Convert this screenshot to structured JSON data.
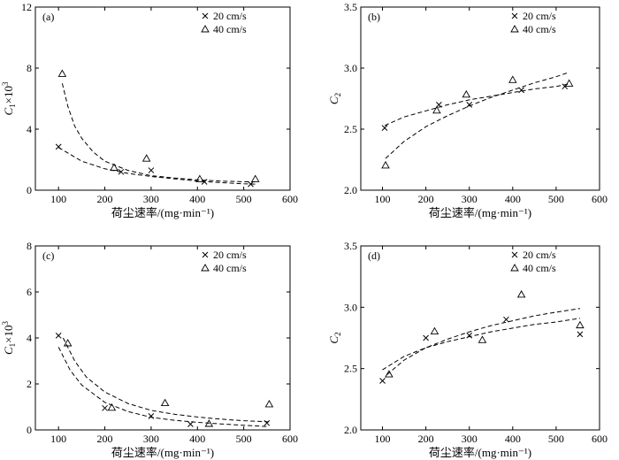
{
  "chart_data": [
    {
      "type": "scatter",
      "panel_label": "(a)",
      "xlabel": "荷尘速率/(mg·min⁻¹)",
      "ylabel_main": "C",
      "ylabel_sub": "1",
      "ylabel_suffix": "×10",
      "ylabel_sup": "3",
      "xlim": [
        50,
        600
      ],
      "ylim": [
        0,
        12
      ],
      "xticks": [
        100,
        200,
        300,
        400,
        500,
        600
      ],
      "yticks": [
        0,
        4,
        8,
        12
      ],
      "legend_position": "top-right",
      "series": [
        {
          "name": "20 cm/s",
          "marker": "x",
          "x": [
            100,
            235,
            300,
            415,
            515
          ],
          "y": [
            2.85,
            1.2,
            1.3,
            0.55,
            0.4
          ],
          "fit_x": [
            100,
            150,
            200,
            250,
            300,
            350,
            400,
            450,
            500,
            525
          ],
          "fit_y": [
            2.8,
            1.9,
            1.4,
            1.1,
            0.9,
            0.75,
            0.6,
            0.5,
            0.42,
            0.4
          ]
        },
        {
          "name": "40 cm/s",
          "marker": "triangle",
          "x": [
            108,
            220,
            290,
            405,
            525
          ],
          "y": [
            7.6,
            1.45,
            2.05,
            0.7,
            0.7
          ],
          "fit_x": [
            108,
            120,
            135,
            150,
            175,
            200,
            250,
            300,
            350,
            400,
            450,
            500,
            525
          ],
          "fit_y": [
            7.0,
            5.5,
            4.2,
            3.4,
            2.5,
            1.9,
            1.3,
            0.95,
            0.8,
            0.68,
            0.6,
            0.55,
            0.55
          ]
        }
      ]
    },
    {
      "type": "scatter",
      "panel_label": "(b)",
      "xlabel": "荷尘速率/(mg·min⁻¹)",
      "ylabel_main": "C",
      "ylabel_sub": "2",
      "ylabel_suffix": "",
      "ylabel_sup": "",
      "xlim": [
        50,
        600
      ],
      "ylim": [
        2.0,
        3.5
      ],
      "xticks": [
        100,
        200,
        300,
        400,
        500,
        600
      ],
      "yticks": [
        2.0,
        2.5,
        3.0,
        3.5
      ],
      "legend_position": "top-right",
      "series": [
        {
          "name": "20 cm/s",
          "marker": "x",
          "x": [
            105,
            230,
            300,
            420,
            520
          ],
          "y": [
            2.51,
            2.7,
            2.7,
            2.82,
            2.85
          ],
          "fit_x": [
            105,
            150,
            200,
            250,
            300,
            350,
            400,
            450,
            500,
            530
          ],
          "fit_y": [
            2.53,
            2.6,
            2.65,
            2.7,
            2.74,
            2.77,
            2.8,
            2.83,
            2.85,
            2.87
          ]
        },
        {
          "name": "40 cm/s",
          "marker": "triangle",
          "x": [
            107,
            225,
            293,
            400,
            530
          ],
          "y": [
            2.2,
            2.65,
            2.78,
            2.9,
            2.87
          ],
          "fit_x": [
            107,
            150,
            200,
            250,
            300,
            350,
            400,
            450,
            500,
            525
          ],
          "fit_y": [
            2.26,
            2.4,
            2.52,
            2.61,
            2.69,
            2.76,
            2.82,
            2.88,
            2.93,
            2.96
          ]
        }
      ]
    },
    {
      "type": "scatter",
      "panel_label": "(c)",
      "xlabel": "荷尘速率/(mg·min⁻¹)",
      "ylabel_main": "C",
      "ylabel_sub": "1",
      "ylabel_suffix": "×10",
      "ylabel_sup": "3",
      "xlim": [
        50,
        600
      ],
      "ylim": [
        0,
        8
      ],
      "xticks": [
        100,
        200,
        300,
        400,
        500,
        600
      ],
      "yticks": [
        0,
        2,
        4,
        6,
        8
      ],
      "legend_position": "top-right",
      "series": [
        {
          "name": "20 cm/s",
          "marker": "x",
          "x": [
            100,
            200,
            300,
            385,
            550
          ],
          "y": [
            4.1,
            0.95,
            0.6,
            0.25,
            0.3
          ],
          "fit_x": [
            100,
            125,
            150,
            200,
            250,
            300,
            350,
            400,
            450,
            500,
            550
          ],
          "fit_y": [
            3.6,
            2.6,
            1.95,
            1.2,
            0.8,
            0.55,
            0.42,
            0.33,
            0.26,
            0.2,
            0.15
          ]
        },
        {
          "name": "40 cm/s",
          "marker": "triangle",
          "x": [
            120,
            215,
            330,
            425,
            555
          ],
          "y": [
            3.75,
            0.95,
            1.15,
            0.25,
            1.1
          ],
          "fit_x": [
            110,
            135,
            160,
            200,
            250,
            300,
            350,
            400,
            450,
            500,
            555
          ],
          "fit_y": [
            4.0,
            3.0,
            2.3,
            1.65,
            1.15,
            0.85,
            0.68,
            0.56,
            0.47,
            0.4,
            0.35
          ]
        }
      ]
    },
    {
      "type": "scatter",
      "panel_label": "(d)",
      "xlabel": "荷尘速率/(mg·min⁻¹)",
      "ylabel_main": "C",
      "ylabel_sub": "2",
      "ylabel_suffix": "",
      "ylabel_sup": "",
      "xlim": [
        50,
        600
      ],
      "ylim": [
        2.0,
        3.5
      ],
      "xticks": [
        100,
        200,
        300,
        400,
        500,
        600
      ],
      "yticks": [
        2.0,
        2.5,
        3.0,
        3.5
      ],
      "legend_position": "top-right",
      "series": [
        {
          "name": "20 cm/s",
          "marker": "x",
          "x": [
            100,
            200,
            300,
            385,
            555
          ],
          "y": [
            2.4,
            2.75,
            2.77,
            2.9,
            2.78
          ],
          "fit_x": [
            100,
            150,
            200,
            250,
            300,
            350,
            400,
            450,
            500,
            555
          ],
          "fit_y": [
            2.49,
            2.6,
            2.67,
            2.72,
            2.76,
            2.8,
            2.83,
            2.86,
            2.88,
            2.91
          ]
        },
        {
          "name": "40 cm/s",
          "marker": "triangle",
          "x": [
            115,
            220,
            330,
            420,
            555
          ],
          "y": [
            2.45,
            2.8,
            2.73,
            3.1,
            2.85
          ],
          "fit_x": [
            110,
            150,
            200,
            250,
            300,
            350,
            400,
            450,
            500,
            555
          ],
          "fit_y": [
            2.45,
            2.57,
            2.67,
            2.74,
            2.8,
            2.85,
            2.89,
            2.93,
            2.96,
            2.99
          ]
        }
      ]
    }
  ]
}
